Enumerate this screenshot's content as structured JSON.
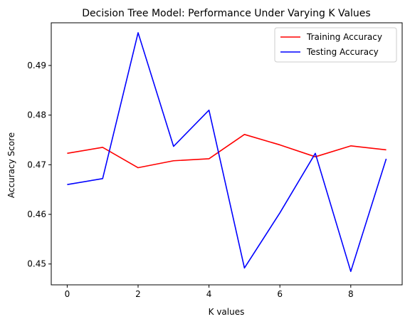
{
  "chart_data": {
    "type": "line",
    "title": "Decision Tree Model: Performance Under Varying K Values",
    "xlabel": "K values",
    "ylabel": "Accuracy Score",
    "x": [
      0,
      1,
      2,
      3,
      4,
      5,
      6,
      7,
      8,
      9
    ],
    "xlim": [
      -0.45,
      9.45
    ],
    "ylim": [
      0.4458,
      0.4986
    ],
    "xticks": [
      0,
      2,
      4,
      6,
      8
    ],
    "yticks": [
      0.45,
      0.46,
      0.47,
      0.48,
      0.49
    ],
    "xtick_labels": [
      "0",
      "2",
      "4",
      "6",
      "8"
    ],
    "ytick_labels": [
      "0.45",
      "0.46",
      "0.47",
      "0.48",
      "0.49"
    ],
    "grid": false,
    "legend_position": "upper right",
    "series": [
      {
        "name": "Training Accuracy",
        "color": "#ff0000",
        "values": [
          0.4723,
          0.4735,
          0.4694,
          0.4708,
          0.4712,
          0.4761,
          0.474,
          0.4716,
          0.4738,
          0.473
        ]
      },
      {
        "name": "Testing Accuracy",
        "color": "#0000ff",
        "values": [
          0.466,
          0.4672,
          0.4966,
          0.4737,
          0.481,
          0.4492,
          0.4603,
          0.4723,
          0.4485,
          0.4712
        ]
      }
    ]
  }
}
